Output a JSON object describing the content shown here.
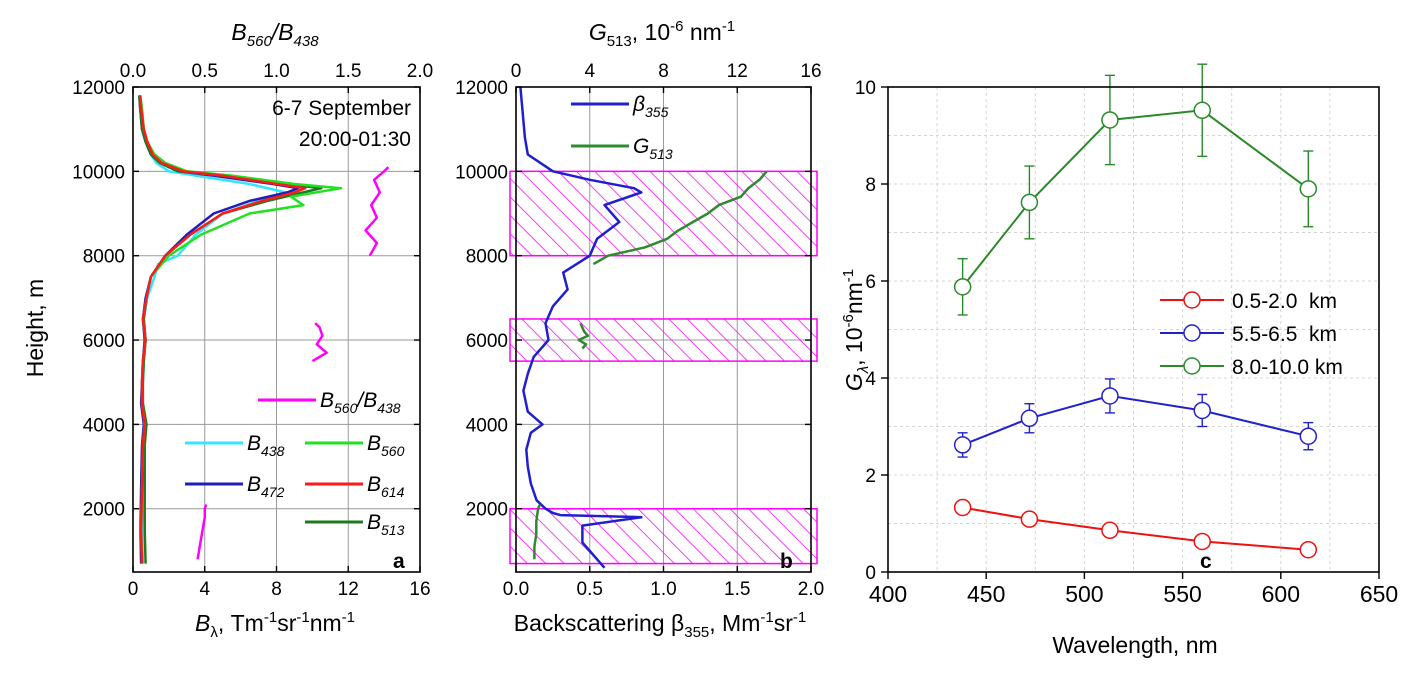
{
  "chart_data": [
    {
      "panel": "a",
      "type": "line",
      "panel_label": "a",
      "annotation_lines": [
        "6-7 September",
        "20:00-01:30"
      ],
      "xlabel": {
        "sym": "B",
        "sub": "λ",
        "text": ", Tm",
        "sup1": "-1",
        "text2": "sr",
        "sup2": "-1",
        "text3": "nm",
        "sup3": "-1"
      },
      "ylabel": "Height, m",
      "top_xlabel": {
        "a": "B",
        "a_sub": "560",
        "b": "/B",
        "b_sub": "438"
      },
      "xlim": [
        0,
        16
      ],
      "xticks": [
        "0",
        "4",
        "8",
        "12",
        "16"
      ],
      "top_xlim": [
        0,
        2
      ],
      "top_xticks": [
        "0.0",
        "0.5",
        "1.0",
        "1.5",
        "2.0"
      ],
      "ylim": [
        500,
        12000
      ],
      "yticks": [
        "2000",
        "4000",
        "6000",
        "8000",
        "10000",
        "12000"
      ],
      "grid": true,
      "legend": [
        {
          "sym": "B",
          "sub": "560",
          "suffix": "/B",
          "sub2": "438",
          "color": "#ff00ff"
        },
        {
          "sym": "B",
          "sub": "438",
          "color": "#33e6ff"
        },
        {
          "sym": "B",
          "sub": "560",
          "color": "#22e022"
        },
        {
          "sym": "B",
          "sub": "472",
          "color": "#1f1fb8"
        },
        {
          "sym": "B",
          "sub": "614",
          "color": "#ff1a1a"
        },
        {
          "sym": "B",
          "sub": "513",
          "color": "#1e7a1e"
        }
      ],
      "series": [
        {
          "name": "B438",
          "color": "#33e6ff",
          "height": [
            700,
            1500,
            2500,
            3500,
            4000,
            4500,
            5000,
            5500,
            6000,
            6500,
            7000,
            7500,
            7800,
            8000,
            8500,
            9000,
            9300,
            9500,
            9700,
            9900,
            10000,
            10200,
            10400,
            10700,
            11000,
            11500,
            11800
          ],
          "value": [
            0.55,
            0.5,
            0.55,
            0.6,
            0.7,
            0.5,
            0.55,
            0.6,
            0.7,
            0.6,
            0.8,
            1.2,
            1.4,
            2.5,
            3.5,
            5.0,
            7.0,
            8.5,
            6.5,
            3.5,
            2.0,
            1.3,
            1.0,
            0.7,
            0.5,
            0.4,
            0.35
          ]
        },
        {
          "name": "B472",
          "color": "#1f1fb8",
          "height": [
            700,
            1500,
            2500,
            3500,
            4000,
            4500,
            5000,
            5500,
            6000,
            6500,
            7000,
            7500,
            8000,
            8500,
            9000,
            9300,
            9500,
            9600,
            9700,
            9900,
            10000,
            10200,
            10400,
            10700,
            11000,
            11500,
            11800
          ],
          "value": [
            0.45,
            0.42,
            0.45,
            0.5,
            0.6,
            0.45,
            0.5,
            0.55,
            0.65,
            0.55,
            0.7,
            1.0,
            1.8,
            3.0,
            4.5,
            6.5,
            8.6,
            9.2,
            7.8,
            4.5,
            2.5,
            1.5,
            1.0,
            0.7,
            0.5,
            0.4,
            0.35
          ]
        },
        {
          "name": "B513",
          "color": "#1e7a1e",
          "height": [
            700,
            1500,
            2500,
            3500,
            4000,
            4500,
            5000,
            5500,
            6000,
            6500,
            7000,
            7500,
            8000,
            8500,
            9000,
            9300,
            9500,
            9600,
            9700,
            9900,
            10000,
            10200,
            10400,
            10700,
            11000,
            11500,
            11800
          ],
          "value": [
            0.7,
            0.65,
            0.65,
            0.65,
            0.75,
            0.55,
            0.55,
            0.6,
            0.7,
            0.6,
            0.75,
            1.0,
            1.8,
            3.2,
            5.0,
            7.5,
            9.5,
            10.5,
            8.5,
            5.0,
            2.5,
            1.5,
            1.0,
            0.7,
            0.5,
            0.4,
            0.35
          ]
        },
        {
          "name": "B560",
          "color": "#22e022",
          "height": [
            700,
            1500,
            2500,
            3500,
            4000,
            4500,
            5000,
            5500,
            6000,
            6500,
            7000,
            7500,
            8000,
            8500,
            9000,
            9200,
            9400,
            9600,
            9700,
            9900,
            10000,
            10200,
            10400,
            10700,
            11000,
            11500,
            11800
          ],
          "value": [
            0.5,
            0.45,
            0.5,
            0.55,
            0.65,
            0.5,
            0.5,
            0.55,
            0.7,
            0.55,
            0.75,
            1.0,
            2.0,
            3.8,
            6.5,
            9.5,
            8.8,
            11.6,
            9.0,
            5.5,
            3.0,
            1.8,
            1.2,
            0.8,
            0.6,
            0.5,
            0.4
          ]
        },
        {
          "name": "B614",
          "color": "#ff1a1a",
          "height": [
            700,
            1500,
            2500,
            3500,
            4000,
            4500,
            5000,
            5500,
            6000,
            6500,
            7000,
            7500,
            8000,
            8500,
            9000,
            9300,
            9500,
            9600,
            9700,
            9900,
            10000,
            10200,
            10400,
            10700,
            11000,
            11500,
            11800
          ],
          "value": [
            0.5,
            0.45,
            0.5,
            0.55,
            0.65,
            0.5,
            0.5,
            0.55,
            0.7,
            0.55,
            0.75,
            1.0,
            1.8,
            3.2,
            5.0,
            7.2,
            9.0,
            9.6,
            8.0,
            5.0,
            2.8,
            1.6,
            1.1,
            0.8,
            0.6,
            0.45,
            0.4
          ]
        },
        {
          "name": "B560/B438",
          "axis": "top",
          "color": "#ff00ff",
          "segments": [
            {
              "height": [
                800,
                1000,
                1200,
                1400,
                1600,
                1800,
                2000,
                2100
              ],
              "value": [
                0.45,
                0.46,
                0.47,
                0.48,
                0.49,
                0.5,
                0.5,
                0.51
              ]
            },
            {
              "height": [
                5500,
                5700,
                5900,
                6100,
                6300,
                6400
              ],
              "value": [
                1.25,
                1.35,
                1.28,
                1.32,
                1.3,
                1.27
              ]
            },
            {
              "height": [
                8000,
                8300,
                8600,
                8900,
                9200,
                9500,
                9800,
                10000,
                10100
              ],
              "value": [
                1.65,
                1.7,
                1.62,
                1.7,
                1.66,
                1.72,
                1.68,
                1.75,
                1.78
              ]
            }
          ]
        }
      ]
    },
    {
      "panel": "b",
      "type": "line",
      "panel_label": "b",
      "xlabel": {
        "text": "Backscattering ",
        "sym": "β",
        "sub": "355",
        "text2": ", Mm",
        "sup1": "-1",
        "text3": "sr",
        "sup2": "-1"
      },
      "top_xlabel": {
        "sym": "G",
        "sub": "513",
        "text": ", 10",
        "sup1": "-6",
        "text2": " nm",
        "sup2": "-1"
      },
      "xlim": [
        0,
        2
      ],
      "xticks": [
        "0.0",
        "0.5",
        "1.0",
        "1.5",
        "2.0"
      ],
      "top_xlim": [
        0,
        16
      ],
      "top_xticks": [
        "0",
        "4",
        "8",
        "12",
        "16"
      ],
      "ylim": [
        500,
        12000
      ],
      "yticks": [
        "2000",
        "4000",
        "6000",
        "8000",
        "10000",
        "12000"
      ],
      "grid": true,
      "legend": [
        {
          "sym": "β",
          "sub": "355",
          "color": "#1f1fd0"
        },
        {
          "sym": "G",
          "sub": "513",
          "color": "#2f8a2f"
        }
      ],
      "hatched_layers_m": [
        [
          700,
          2000
        ],
        [
          5500,
          6500
        ],
        [
          8000,
          10000
        ]
      ],
      "series": [
        {
          "name": "beta355",
          "color": "#1f1fd0",
          "height": [
            600,
            800,
            1200,
            1600,
            1800,
            1850,
            1900,
            2000,
            2200,
            2600,
            3000,
            3400,
            3800,
            4000,
            4300,
            4800,
            5200,
            5600,
            6000,
            6400,
            6800,
            7200,
            7600,
            8000,
            8400,
            8800,
            9200,
            9500,
            9600,
            9800,
            10000,
            10400,
            10800,
            11200,
            11600,
            12000
          ],
          "value": [
            0.6,
            0.55,
            0.45,
            0.45,
            0.85,
            0.3,
            0.25,
            0.2,
            0.14,
            0.1,
            0.08,
            0.07,
            0.1,
            0.18,
            0.08,
            0.05,
            0.08,
            0.12,
            0.22,
            0.2,
            0.25,
            0.35,
            0.32,
            0.5,
            0.55,
            0.7,
            0.6,
            0.85,
            0.8,
            0.5,
            0.25,
            0.08,
            0.06,
            0.05,
            0.04,
            0.03
          ]
        },
        {
          "name": "G513",
          "axis": "top",
          "color": "#2f8a2f",
          "segments": [
            {
              "height": [
                800,
                1100,
                1400,
                1700,
                2000,
                2100
              ],
              "value": [
                1.0,
                1.0,
                1.1,
                1.1,
                1.2,
                1.3
              ]
            },
            {
              "height": [
                5800,
                5900,
                6000,
                6100,
                6200,
                6400
              ],
              "value": [
                3.6,
                3.8,
                3.4,
                3.9,
                3.7,
                3.5
              ]
            },
            {
              "height": [
                7800,
                8000,
                8200,
                8400,
                8600,
                8800,
                9000,
                9200,
                9400,
                9600,
                9800,
                10000
              ],
              "value": [
                4.2,
                5.0,
                7.0,
                8.2,
                8.8,
                9.6,
                10.4,
                11.0,
                12.2,
                12.6,
                13.2,
                13.6
              ]
            }
          ]
        }
      ]
    },
    {
      "panel": "c",
      "type": "scatter",
      "panel_label": "c",
      "xlabel": "Wavelength, nm",
      "ylabel": {
        "sym": "G",
        "sub": "λ",
        "text": ", 10",
        "sup1": "-6",
        "text2": "nm",
        "sup2": "-1"
      },
      "xlim": [
        400,
        650
      ],
      "xticks": [
        "400",
        "450",
        "500",
        "550",
        "600",
        "650"
      ],
      "ylim": [
        0,
        10
      ],
      "yticks": [
        "0",
        "2",
        "4",
        "6",
        "8",
        "10"
      ],
      "grid": true,
      "x": [
        438,
        472,
        513,
        560,
        614
      ],
      "series": [
        {
          "name": "0.5-2.0  km",
          "color": "#ee1111",
          "values": [
            1.33,
            1.09,
            0.86,
            0.63,
            0.46
          ],
          "errors": [
            0.07,
            0.1,
            0.12,
            0.12,
            0.1
          ]
        },
        {
          "name": "5.5-6.5  km",
          "color": "#2222cc",
          "values": [
            2.62,
            3.17,
            3.63,
            3.33,
            2.8
          ],
          "errors": [
            0.25,
            0.3,
            0.35,
            0.33,
            0.28
          ]
        },
        {
          "name": "8.0-10.0 km",
          "color": "#2a8a2a",
          "values": [
            5.88,
            7.62,
            9.32,
            9.52,
            7.9
          ],
          "errors": [
            0.58,
            0.75,
            0.92,
            0.95,
            0.78
          ]
        }
      ]
    }
  ]
}
